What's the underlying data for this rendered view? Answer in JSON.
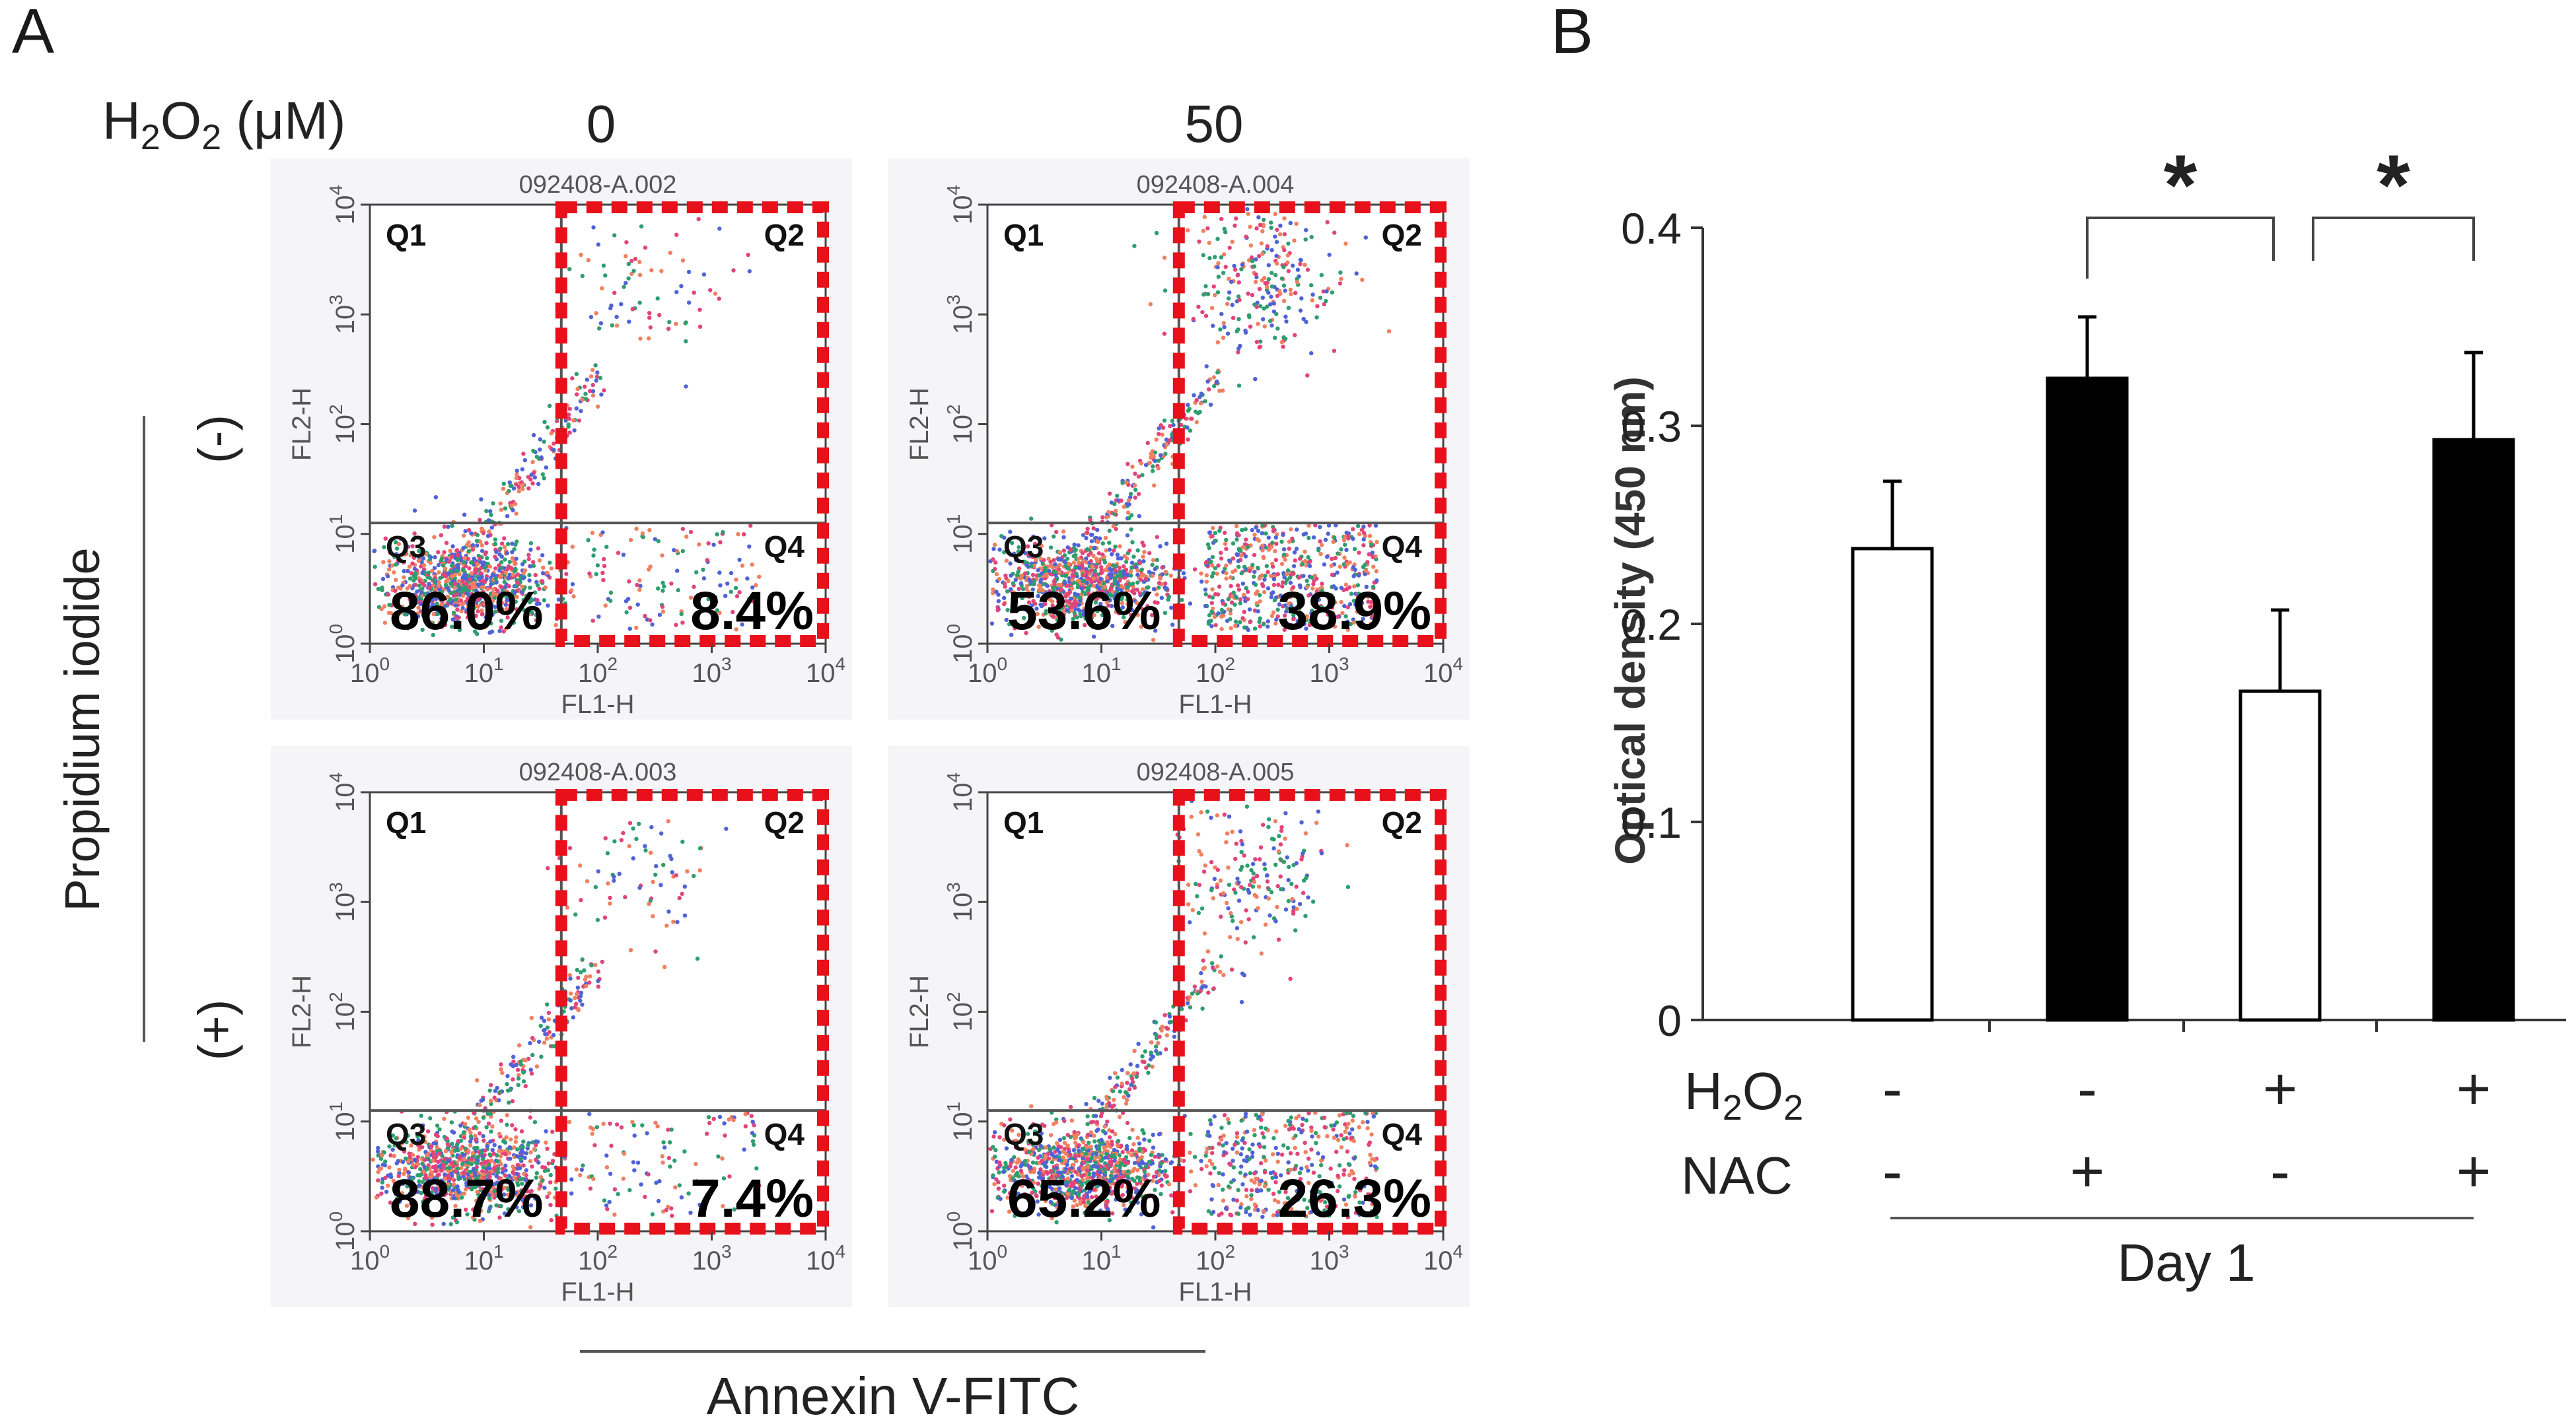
{
  "panelA": {
    "label": "A",
    "h2o2_label": {
      "main": "H",
      "sub1": "2",
      "mid": "O",
      "sub2": "2",
      "unit": " (μM)"
    },
    "doses": [
      "0",
      "50"
    ],
    "nac_states": [
      "(-)",
      "(+)"
    ],
    "y_axis_title": "Propidium iodide",
    "x_axis_title": "Annexin V-FITC",
    "axis_x_name": "FL1-H",
    "axis_y_name": "FL2-H",
    "tick_base": "10",
    "tick_exps": [
      "0",
      "1",
      "2",
      "3",
      "4"
    ],
    "quadrant_names": [
      "Q1",
      "Q2",
      "Q3",
      "Q4"
    ],
    "highlight_color": "#e8101a",
    "plots": [
      {
        "file": "092408-A.002",
        "q3": "86.0%",
        "q4": "8.4%"
      },
      {
        "file": "092408-A.004",
        "q3": "53.6%",
        "q4": "38.9%"
      },
      {
        "file": "092408-A.003",
        "q3": "88.7%",
        "q4": "7.4%"
      },
      {
        "file": "092408-A.005",
        "q3": "65.2%",
        "q4": "26.3%"
      }
    ]
  },
  "panelB": {
    "label": "B",
    "sig_marker": "*",
    "row_labels": {
      "h2o2": {
        "main": "H",
        "sub1": "2",
        "mid": "O",
        "sub2": "2"
      },
      "nac": "NAC"
    },
    "h2o2_signs": [
      "-",
      "-",
      "+",
      "+"
    ],
    "nac_signs": [
      "-",
      "+",
      "-",
      "+"
    ],
    "group_label": "Day 1"
  },
  "chart_data": {
    "type": "bar",
    "title": "",
    "xlabel": "Day 1",
    "ylabel": "Optical density (450 nm)",
    "categories": [
      "H2O2 - / NAC -",
      "H2O2 - / NAC +",
      "H2O2 + / NAC -",
      "H2O2 + / NAC +"
    ],
    "values": [
      0.238,
      0.324,
      0.166,
      0.293
    ],
    "errors": [
      0.034,
      0.031,
      0.041,
      0.044
    ],
    "fill_colors": [
      "#ffffff",
      "#000000",
      "#ffffff",
      "#000000"
    ],
    "ylim": [
      0,
      0.4
    ],
    "yticks": [
      "0",
      "0.1",
      "0.2",
      "0.3",
      "0.4"
    ],
    "significance": [
      {
        "between": [
          1,
          2
        ],
        "marker": "*"
      },
      {
        "between": [
          2,
          3
        ],
        "marker": "*"
      }
    ]
  }
}
